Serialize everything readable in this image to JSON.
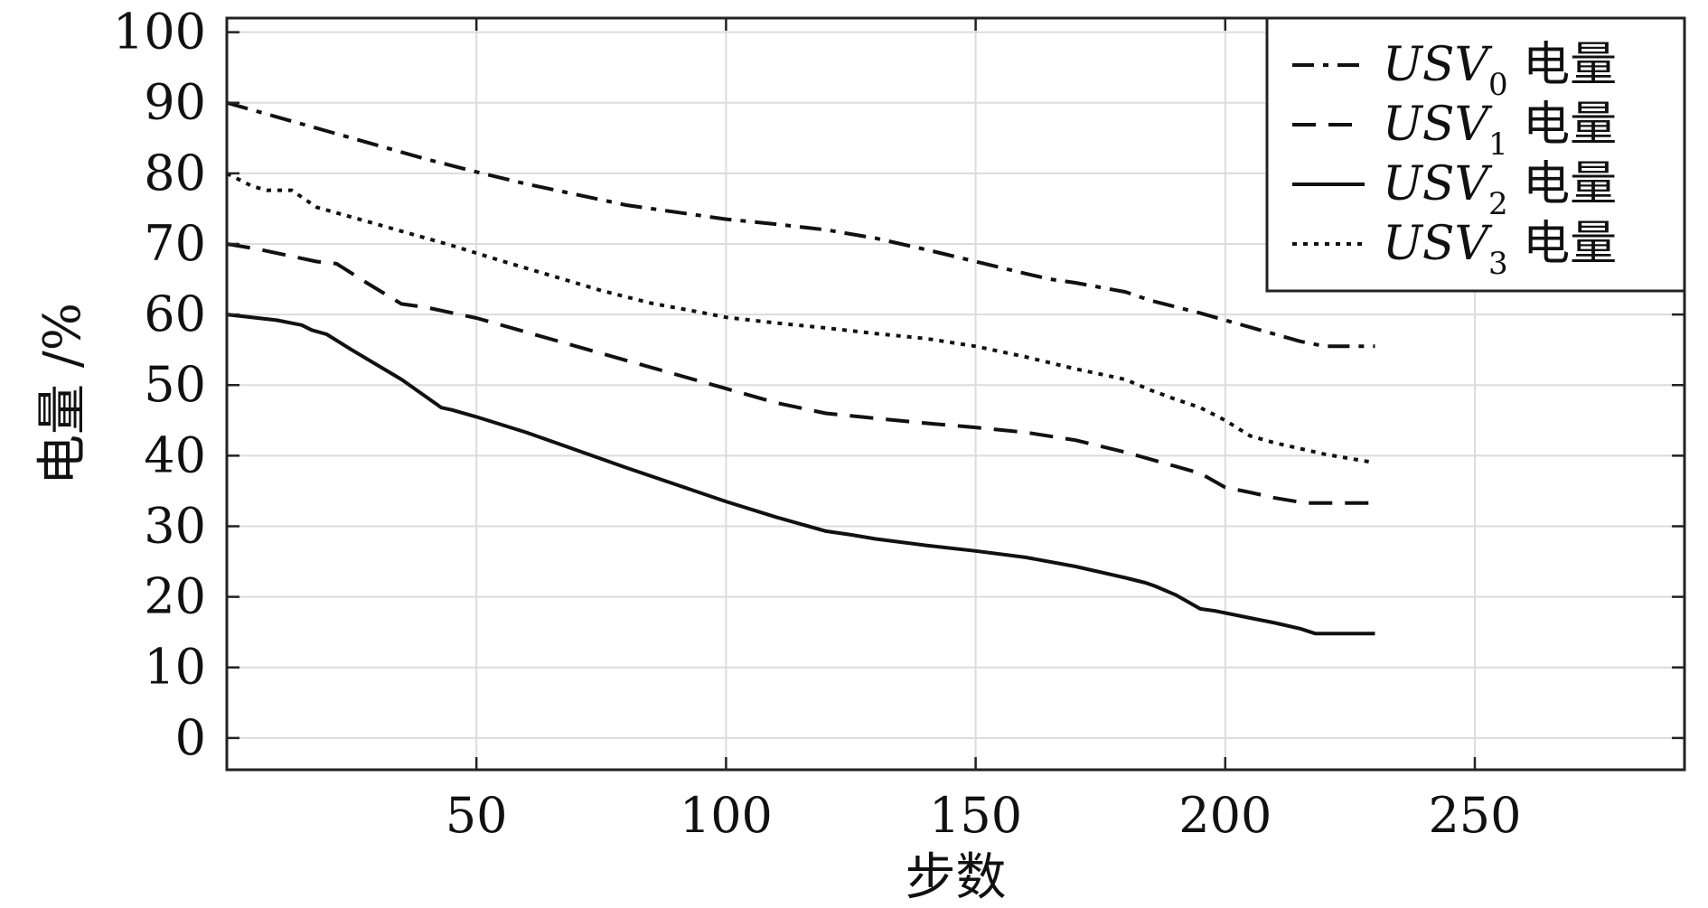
{
  "chart_data": {
    "type": "line",
    "xlabel": "步数",
    "ylabel": "电量 /%",
    "xlim": [
      0,
      292
    ],
    "ylim": [
      -4.5,
      102
    ],
    "xticks": [
      50,
      100,
      150,
      200,
      250
    ],
    "yticks": [
      0,
      10,
      20,
      30,
      40,
      50,
      60,
      70,
      80,
      90,
      100
    ],
    "grid": true,
    "legend_position": "top-right",
    "series": [
      {
        "name": "USV",
        "name_sub": "0",
        "name_suffix": " 电量",
        "style": "dashdot",
        "x": [
          0,
          10,
          20,
          30,
          40,
          50,
          60,
          70,
          80,
          90,
          100,
          110,
          120,
          130,
          140,
          150,
          160,
          165,
          170,
          180,
          185,
          195,
          205,
          215,
          220,
          230
        ],
        "y": [
          90,
          88,
          86,
          84,
          82,
          80.2,
          78.5,
          77,
          75.5,
          74.5,
          73.5,
          72.8,
          72,
          70.8,
          69.2,
          67.5,
          65.8,
          65,
          64.5,
          63.2,
          62,
          60.2,
          58.2,
          56.2,
          55.5,
          55.5
        ]
      },
      {
        "name": "USV",
        "name_sub": "1",
        "name_suffix": " 电量",
        "style": "dashed",
        "x": [
          0,
          6,
          12,
          18,
          22,
          28,
          35,
          40,
          50,
          60,
          70,
          80,
          90,
          100,
          110,
          120,
          130,
          140,
          150,
          160,
          170,
          180,
          185,
          190,
          195,
          200,
          205,
          210,
          216,
          230
        ],
        "y": [
          70,
          69.3,
          68.4,
          67.5,
          67.2,
          64.5,
          61.5,
          61,
          59.5,
          57.5,
          55.5,
          53.5,
          51.5,
          49.5,
          47.5,
          46,
          45.3,
          44.6,
          44,
          43.3,
          42.2,
          40.5,
          39.5,
          38.5,
          37.5,
          35.5,
          34.8,
          34,
          33.3,
          33.3
        ]
      },
      {
        "name": "USV",
        "name_sub": "2",
        "name_suffix": " 电量",
        "style": "solid",
        "x": [
          0,
          10,
          15,
          17,
          20,
          25,
          35,
          43,
          45,
          50,
          60,
          70,
          80,
          90,
          100,
          110,
          120,
          125,
          130,
          140,
          150,
          160,
          170,
          180,
          184,
          186,
          190,
          195,
          198,
          205,
          210,
          215,
          218,
          230
        ],
        "y": [
          60,
          59.2,
          58.5,
          57.8,
          57.2,
          55,
          50.8,
          46.8,
          46.5,
          45.5,
          43.3,
          40.8,
          38.3,
          35.9,
          33.5,
          31.3,
          29.3,
          28.8,
          28.2,
          27.3,
          26.5,
          25.6,
          24.3,
          22.7,
          22,
          21.5,
          20.3,
          18.3,
          18,
          17,
          16.3,
          15.5,
          14.8,
          14.8
        ]
      },
      {
        "name": "USV",
        "name_sub": "3",
        "name_suffix": " 电量",
        "style": "dotted",
        "x": [
          0,
          5,
          8,
          13,
          18,
          25,
          35,
          45,
          55,
          65,
          75,
          85,
          95,
          100,
          110,
          120,
          130,
          140,
          150,
          160,
          170,
          180,
          185,
          190,
          195,
          200,
          205,
          210,
          220,
          230
        ],
        "y": [
          80,
          78.2,
          77.6,
          77.6,
          75.2,
          73.8,
          71.8,
          69.8,
          67.6,
          65.5,
          63.4,
          61.6,
          60.3,
          59.6,
          58.8,
          58.1,
          57.3,
          56.6,
          55.5,
          54,
          52.3,
          50.8,
          49.3,
          48,
          46.8,
          45,
          42.8,
          41.8,
          40.2,
          39
        ]
      }
    ]
  }
}
